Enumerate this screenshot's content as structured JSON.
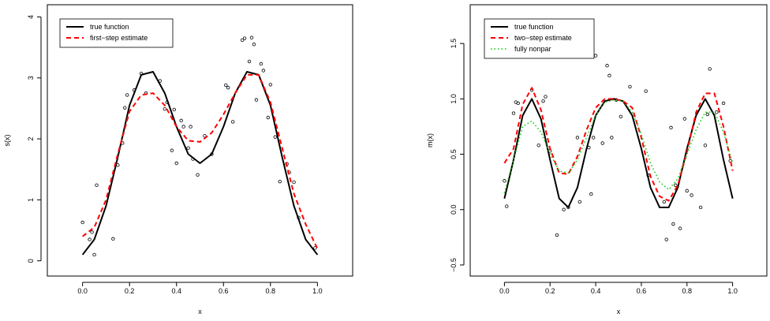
{
  "chart_data": [
    {
      "type": "line",
      "title": "",
      "xlabel": "x",
      "ylabel": "s(x)",
      "xlim": [
        -0.15,
        1.15
      ],
      "ylim": [
        -0.25,
        4.2
      ],
      "xticks": [
        0.0,
        0.2,
        0.4,
        0.6,
        0.8,
        1.0
      ],
      "xtick_labels": [
        "0.0",
        "0.2",
        "0.4",
        "0.6",
        "0.8",
        "1.0"
      ],
      "yticks": [
        0,
        1,
        2,
        3,
        4
      ],
      "ytick_labels": [
        "0",
        "1",
        "2",
        "3",
        "4"
      ],
      "legend_position": "top-left",
      "legend": [
        {
          "label": "true function",
          "color": "#000000",
          "dash": "solid"
        },
        {
          "label": "first−step estimate",
          "color": "#ff0000",
          "dash": "dashed"
        }
      ],
      "series": [
        {
          "name": "true function",
          "color": "#000000",
          "dash": "solid",
          "x": [
            0.0,
            0.05,
            0.1,
            0.15,
            0.2,
            0.25,
            0.3,
            0.35,
            0.4,
            0.45,
            0.5,
            0.55,
            0.6,
            0.65,
            0.7,
            0.75,
            0.8,
            0.85,
            0.9,
            0.95,
            1.0
          ],
          "y": [
            0.1,
            0.35,
            0.9,
            1.7,
            2.55,
            3.05,
            3.1,
            2.75,
            2.2,
            1.75,
            1.6,
            1.75,
            2.2,
            2.75,
            3.1,
            3.05,
            2.55,
            1.7,
            0.9,
            0.35,
            0.1
          ]
        },
        {
          "name": "first−step estimate",
          "color": "#ff0000",
          "dash": "dashed",
          "x": [
            0.0,
            0.05,
            0.1,
            0.15,
            0.2,
            0.25,
            0.3,
            0.35,
            0.4,
            0.45,
            0.5,
            0.55,
            0.6,
            0.65,
            0.7,
            0.75,
            0.8,
            0.85,
            0.9,
            0.95,
            1.0
          ],
          "y": [
            0.4,
            0.55,
            1.0,
            1.75,
            2.45,
            2.72,
            2.75,
            2.55,
            2.2,
            1.97,
            1.95,
            2.1,
            2.4,
            2.75,
            3.05,
            3.05,
            2.6,
            1.85,
            1.1,
            0.6,
            0.2
          ]
        }
      ],
      "points": {
        "x": [
          0.0,
          0.03,
          0.04,
          0.05,
          0.06,
          0.13,
          0.15,
          0.17,
          0.18,
          0.19,
          0.22,
          0.25,
          0.27,
          0.32,
          0.33,
          0.35,
          0.36,
          0.38,
          0.39,
          0.4,
          0.42,
          0.43,
          0.45,
          0.46,
          0.47,
          0.49,
          0.52,
          0.55,
          0.61,
          0.62,
          0.64,
          0.68,
          0.69,
          0.71,
          0.72,
          0.73,
          0.74,
          0.76,
          0.77,
          0.79,
          0.8,
          0.82,
          0.84,
          0.87,
          0.88,
          0.9,
          0.92,
          0.99
        ],
        "y": [
          0.63,
          0.35,
          0.47,
          0.1,
          1.24,
          0.36,
          1.57,
          1.93,
          2.51,
          2.72,
          2.8,
          3.07,
          2.75,
          3.6,
          2.95,
          2.49,
          2.6,
          1.81,
          2.48,
          1.6,
          2.3,
          2.2,
          1.85,
          2.2,
          1.67,
          1.41,
          2.05,
          1.75,
          2.88,
          2.84,
          2.28,
          3.62,
          3.65,
          3.27,
          3.66,
          3.55,
          2.64,
          3.23,
          3.12,
          2.35,
          2.89,
          2.03,
          1.3,
          1.59,
          1.45,
          1.29,
          0.71,
          0.21
        ]
      }
    },
    {
      "type": "line",
      "title": "",
      "xlabel": "x",
      "ylabel": "m(x)",
      "xlim": [
        -0.15,
        1.15
      ],
      "ylim": [
        -0.6,
        1.85
      ],
      "xticks": [
        0.0,
        0.2,
        0.4,
        0.6,
        0.8,
        1.0
      ],
      "xtick_labels": [
        "0.0",
        "0.2",
        "0.4",
        "0.6",
        "0.8",
        "1.0"
      ],
      "yticks": [
        -0.5,
        0.0,
        0.5,
        1.0,
        1.5
      ],
      "ytick_labels": [
        "−0.5",
        "0.0",
        "0.5",
        "1.0",
        "1.5"
      ],
      "legend_position": "top-left",
      "legend": [
        {
          "label": "true function",
          "color": "#000000",
          "dash": "solid"
        },
        {
          "label": "two−step estimate",
          "color": "#ff0000",
          "dash": "dashed"
        },
        {
          "label": "fully nonpar",
          "color": "#00cc00",
          "dash": "dotted"
        }
      ],
      "series": [
        {
          "name": "true function",
          "color": "#000000",
          "dash": "solid",
          "x": [
            0.0,
            0.04,
            0.08,
            0.12,
            0.16,
            0.2,
            0.24,
            0.28,
            0.32,
            0.36,
            0.4,
            0.44,
            0.48,
            0.52,
            0.56,
            0.6,
            0.64,
            0.68,
            0.72,
            0.76,
            0.8,
            0.84,
            0.88,
            0.92,
            0.96,
            1.0
          ],
          "y": [
            0.1,
            0.45,
            0.85,
            1.0,
            0.82,
            0.45,
            0.1,
            0.02,
            0.2,
            0.55,
            0.85,
            0.98,
            1.0,
            0.98,
            0.85,
            0.55,
            0.2,
            0.02,
            0.02,
            0.2,
            0.55,
            0.85,
            1.0,
            0.85,
            0.45,
            0.1
          ]
        },
        {
          "name": "two−step estimate",
          "color": "#ff0000",
          "dash": "dashed",
          "x": [
            0.0,
            0.04,
            0.08,
            0.12,
            0.16,
            0.2,
            0.24,
            0.28,
            0.32,
            0.36,
            0.4,
            0.44,
            0.48,
            0.52,
            0.56,
            0.6,
            0.64,
            0.68,
            0.72,
            0.76,
            0.8,
            0.84,
            0.88,
            0.92,
            0.96,
            1.0
          ],
          "y": [
            0.42,
            0.55,
            0.95,
            1.1,
            0.9,
            0.55,
            0.33,
            0.32,
            0.48,
            0.72,
            0.92,
            1.0,
            1.0,
            0.98,
            0.92,
            0.65,
            0.3,
            0.12,
            0.08,
            0.22,
            0.52,
            0.88,
            1.05,
            1.05,
            0.75,
            0.35
          ]
        },
        {
          "name": "fully nonpar",
          "color": "#00cc00",
          "dash": "dotted",
          "x": [
            0.0,
            0.04,
            0.08,
            0.12,
            0.16,
            0.2,
            0.24,
            0.28,
            0.32,
            0.36,
            0.4,
            0.44,
            0.48,
            0.52,
            0.56,
            0.6,
            0.64,
            0.68,
            0.72,
            0.76,
            0.8,
            0.84,
            0.88,
            0.92,
            0.96,
            1.0
          ],
          "y": [
            0.15,
            0.45,
            0.75,
            0.8,
            0.7,
            0.5,
            0.35,
            0.33,
            0.45,
            0.65,
            0.85,
            0.97,
            0.99,
            0.98,
            0.88,
            0.68,
            0.42,
            0.25,
            0.18,
            0.28,
            0.5,
            0.72,
            0.88,
            0.88,
            0.7,
            0.42
          ]
        }
      ],
      "points": {
        "x": [
          0.0,
          0.01,
          0.04,
          0.05,
          0.06,
          0.12,
          0.15,
          0.17,
          0.18,
          0.2,
          0.23,
          0.26,
          0.28,
          0.32,
          0.33,
          0.37,
          0.38,
          0.39,
          0.4,
          0.43,
          0.45,
          0.46,
          0.47,
          0.49,
          0.51,
          0.55,
          0.62,
          0.63,
          0.7,
          0.71,
          0.73,
          0.74,
          0.75,
          0.77,
          0.79,
          0.8,
          0.82,
          0.86,
          0.88,
          0.89,
          0.9,
          0.93,
          0.96,
          0.99
        ],
        "y": [
          0.26,
          0.03,
          0.87,
          0.97,
          0.96,
          1.08,
          0.58,
          0.98,
          1.02,
          0.53,
          -0.23,
          0.0,
          0.02,
          0.65,
          0.07,
          0.56,
          0.14,
          0.65,
          1.39,
          0.6,
          1.3,
          1.21,
          0.65,
          0.99,
          0.84,
          1.11,
          1.07,
          0.31,
          0.07,
          -0.27,
          0.74,
          -0.13,
          0.22,
          -0.17,
          0.82,
          0.17,
          0.13,
          0.02,
          0.58,
          0.86,
          1.27,
          0.88,
          0.96,
          0.44
        ]
      }
    }
  ]
}
